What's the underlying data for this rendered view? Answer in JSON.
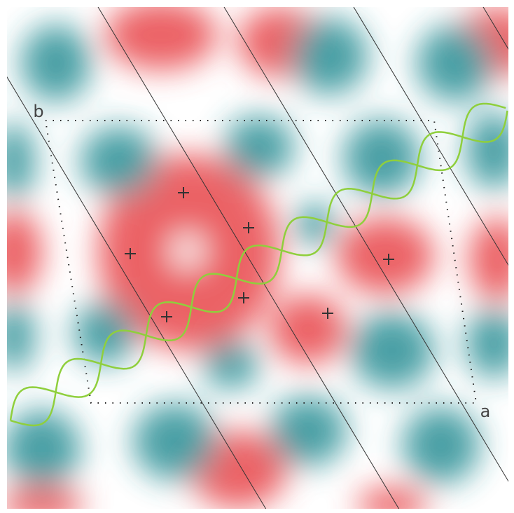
{
  "labels": {
    "b": "b",
    "a": "a"
  }
}
